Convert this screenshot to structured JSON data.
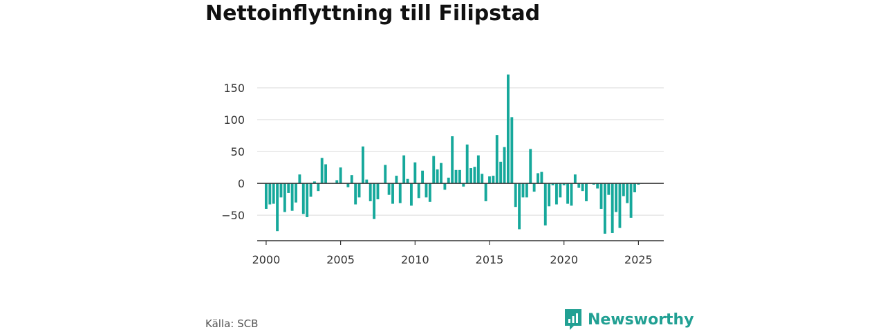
{
  "source": "Källa: SCB",
  "brand": {
    "name": "Newsworthy",
    "icon": "newsworthy-logo-icon"
  },
  "colors": {
    "bar": "#16a89b",
    "grid": "#d9d9d9",
    "zero_line": "#333333"
  },
  "chart_data": {
    "type": "bar",
    "title": "Nettoinflyttning till Filipstad",
    "xlabel": "",
    "ylabel": "",
    "xlim": [
      1999.4,
      2026.7
    ],
    "ylim": [
      -90,
      175
    ],
    "x_ticks": [
      2000,
      2005,
      2010,
      2015,
      2020,
      2025
    ],
    "y_ticks": [
      150,
      100,
      50,
      0,
      -50
    ],
    "y_tick_labels": [
      "150",
      "100",
      "50",
      "0",
      "−50"
    ],
    "grid": true,
    "series": [
      {
        "x": [
          2000.0,
          2000.25,
          2000.5,
          2000.75,
          2001.0,
          2001.25,
          2001.5,
          2001.75,
          2002.0,
          2002.25,
          2002.5,
          2002.75,
          2003.0,
          2003.25,
          2003.5,
          2003.75,
          2004.0,
          2004.25,
          2004.5,
          2004.75,
          2005.0,
          2005.25,
          2005.5,
          2005.75,
          2006.0,
          2006.25,
          2006.5,
          2006.75,
          2007.0,
          2007.25,
          2007.5,
          2007.75,
          2008.0,
          2008.25,
          2008.5,
          2008.75,
          2009.0,
          2009.25,
          2009.5,
          2009.75,
          2010.0,
          2010.25,
          2010.5,
          2010.75,
          2011.0,
          2011.25,
          2011.5,
          2011.75,
          2012.0,
          2012.25,
          2012.5,
          2012.75,
          2013.0,
          2013.25,
          2013.5,
          2013.75,
          2014.0,
          2014.25,
          2014.5,
          2014.75,
          2015.0,
          2015.25,
          2015.5,
          2015.75,
          2016.0,
          2016.25,
          2016.5,
          2016.75,
          2017.0,
          2017.25,
          2017.5,
          2017.75,
          2018.0,
          2018.25,
          2018.5,
          2018.75,
          2019.0,
          2019.25,
          2019.5,
          2019.75,
          2020.0,
          2020.25,
          2020.5,
          2020.75,
          2021.0,
          2021.25,
          2021.5,
          2021.75,
          2022.0,
          2022.25,
          2022.5,
          2022.75,
          2023.0,
          2023.25,
          2023.5,
          2023.75,
          2024.0,
          2024.25,
          2024.5,
          2024.75,
          2025.0,
          2025.25
        ],
        "values": [
          -40,
          -33,
          -32,
          -75,
          -22,
          -45,
          -15,
          -43,
          -30,
          14,
          -48,
          -53,
          -21,
          3,
          -12,
          40,
          30,
          0,
          0,
          5,
          25,
          0,
          -6,
          13,
          -33,
          -22,
          58,
          6,
          -28,
          -56,
          -25,
          0,
          29,
          -18,
          -32,
          12,
          -31,
          44,
          7,
          -35,
          33,
          -23,
          20,
          -22,
          -29,
          43,
          22,
          32,
          -10,
          9,
          74,
          21,
          21,
          -5,
          61,
          24,
          26,
          44,
          15,
          -28,
          11,
          12,
          76,
          34,
          57,
          171,
          104,
          -37,
          -72,
          -22,
          -22,
          54,
          -13,
          16,
          18,
          -66,
          -36,
          -3,
          -33,
          -22,
          -3,
          -32,
          -35,
          14,
          -7,
          -12,
          -28,
          0,
          -2,
          -8,
          -40,
          -79,
          -18,
          -78,
          -45,
          -70,
          -20,
          -31,
          -54,
          -14,
          -2,
          0
        ]
      }
    ]
  }
}
